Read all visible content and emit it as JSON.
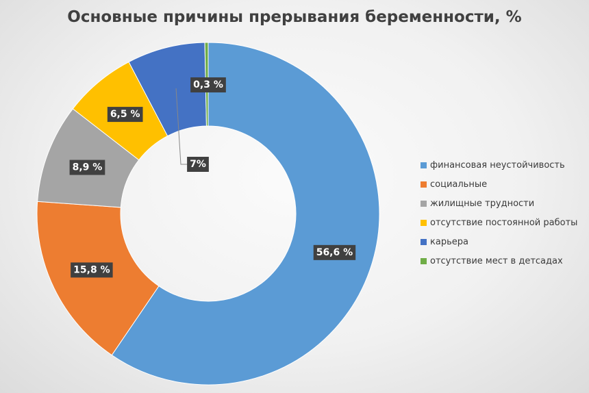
{
  "chart_data": {
    "type": "pie",
    "variant": "donut",
    "title": "Основные причины прерывания беременности, %",
    "legend_position": "right",
    "series": [
      {
        "categories": [
          "финансовая неустойчивость",
          "социальные",
          "жилищные трудности",
          "отсутствие постоянной работы",
          "карьера",
          "отсутствие мест в детсадах"
        ],
        "values": [
          56.6,
          15.8,
          8.9,
          6.5,
          7,
          0.3
        ],
        "labels": [
          "56,6 %",
          "15,8 %",
          "8,9 %",
          "6,5 %",
          "7%",
          "0,3 %"
        ],
        "colors": [
          "#5b9bd5",
          "#ed7d31",
          "#a5a5a5",
          "#ffc000",
          "#4472c4",
          "#70ad47"
        ]
      }
    ]
  }
}
